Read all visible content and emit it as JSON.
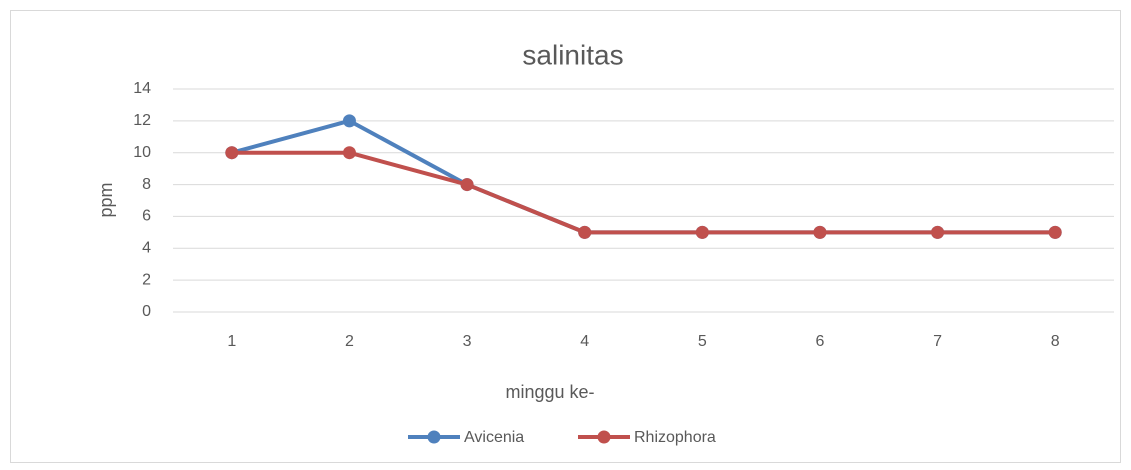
{
  "chart_data": {
    "type": "line",
    "title": "salinitas",
    "x_label": "minggu ke-",
    "y_label": "ppm",
    "categories": [
      "1",
      "2",
      "3",
      "4",
      "5",
      "6",
      "7",
      "8"
    ],
    "series": [
      {
        "name": "Avicenia",
        "color": "#4f81bd",
        "values": [
          10,
          12,
          8,
          5,
          5,
          5,
          5,
          5
        ]
      },
      {
        "name": "Rhizophora",
        "color": "#c0504d",
        "values": [
          10,
          10,
          8,
          5,
          5,
          5,
          5,
          5
        ]
      }
    ],
    "ylim": [
      0,
      14
    ],
    "yticks": [
      0,
      2,
      4,
      6,
      8,
      10,
      12,
      14
    ],
    "grid": true,
    "legend": "bottom"
  }
}
